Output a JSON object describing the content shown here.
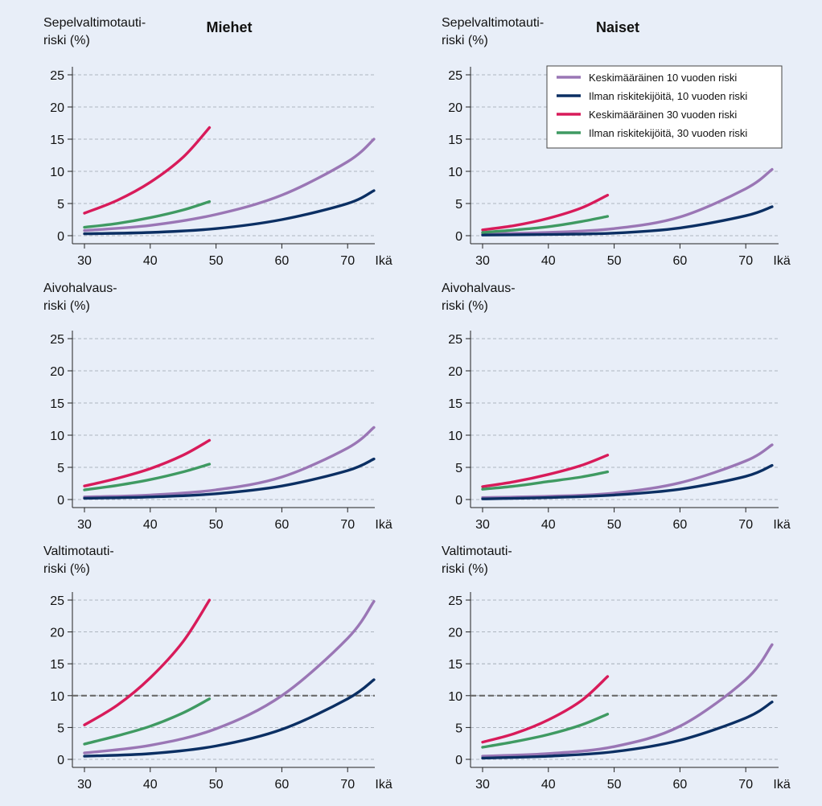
{
  "group_titles": [
    "Miehet",
    "Naiset"
  ],
  "series_legend": [
    {
      "name": "Keskimääräinen 10 vuoden riski",
      "color": "#9a76b5"
    },
    {
      "name": "Ilman riskitekijöitä, 10 vuoden riski",
      "color": "#0b2f63"
    },
    {
      "name": "Keskimääräinen 30 vuoden riski",
      "color": "#d81b5a"
    },
    {
      "name": "Ilman riskitekijöitä, 30 vuoden riski",
      "color": "#3f9a62"
    }
  ],
  "chart_data": [
    {
      "type": "line",
      "group": "Miehet",
      "ylabel": [
        "Sepelvaltimotauti-",
        "riski (%)"
      ],
      "xlabel": "Ikä",
      "xticks": [
        30,
        40,
        50,
        60,
        70
      ],
      "yticks": [
        0,
        5,
        10,
        15,
        20,
        25
      ],
      "ylim": [
        0,
        25
      ],
      "xlim": [
        30,
        75
      ],
      "threshold": null,
      "series": [
        {
          "name": "Keskimääräinen 10 vuoden riski",
          "x": [
            30,
            40,
            50,
            60,
            70,
            74
          ],
          "y": [
            0.8,
            1.6,
            3.3,
            6.3,
            11.5,
            15.0
          ]
        },
        {
          "name": "Ilman riskitekijöitä, 10 vuoden riski",
          "x": [
            30,
            40,
            50,
            60,
            70,
            74
          ],
          "y": [
            0.3,
            0.5,
            1.1,
            2.5,
            5.0,
            7.0
          ]
        },
        {
          "name": "Keskimääräinen 30 vuoden riski",
          "x": [
            30,
            35,
            40,
            45,
            49
          ],
          "y": [
            3.5,
            5.5,
            8.3,
            12.2,
            16.8
          ]
        },
        {
          "name": "Ilman riskitekijöitä, 30 vuoden riski",
          "x": [
            30,
            35,
            40,
            45,
            49
          ],
          "y": [
            1.3,
            1.9,
            2.8,
            4.0,
            5.3
          ]
        }
      ]
    },
    {
      "type": "line",
      "group": "Naiset",
      "ylabel": [
        "Sepelvaltimotauti-",
        "riski (%)"
      ],
      "xlabel": "Ikä",
      "xticks": [
        30,
        40,
        50,
        60,
        70
      ],
      "yticks": [
        0,
        5,
        10,
        15,
        20,
        25
      ],
      "ylim": [
        0,
        25
      ],
      "xlim": [
        30,
        75
      ],
      "threshold": null,
      "legend": "top-right",
      "series": [
        {
          "name": "Keskimääräinen 10 vuoden riski",
          "x": [
            30,
            40,
            50,
            60,
            70,
            74
          ],
          "y": [
            0.3,
            0.5,
            1.1,
            2.9,
            7.3,
            10.3
          ]
        },
        {
          "name": "Ilman riskitekijöitä, 10 vuoden riski",
          "x": [
            30,
            40,
            50,
            60,
            70,
            74
          ],
          "y": [
            0.1,
            0.2,
            0.4,
            1.2,
            3.1,
            4.5
          ]
        },
        {
          "name": "Keskimääräinen 30 vuoden riski",
          "x": [
            30,
            35,
            40,
            45,
            49
          ],
          "y": [
            0.9,
            1.6,
            2.7,
            4.3,
            6.3
          ]
        },
        {
          "name": "Ilman riskitekijöitä, 30 vuoden riski",
          "x": [
            30,
            35,
            40,
            45,
            49
          ],
          "y": [
            0.5,
            0.9,
            1.4,
            2.2,
            3.0
          ]
        }
      ]
    },
    {
      "type": "line",
      "group": "Miehet",
      "ylabel": [
        "Aivohalvaus-",
        "riski (%)"
      ],
      "xlabel": "Ikä",
      "xticks": [
        30,
        40,
        50,
        60,
        70
      ],
      "yticks": [
        0,
        5,
        10,
        15,
        20,
        25
      ],
      "ylim": [
        0,
        25
      ],
      "xlim": [
        30,
        75
      ],
      "threshold": null,
      "series": [
        {
          "name": "Keskimääräinen 10 vuoden riski",
          "x": [
            30,
            40,
            50,
            60,
            70,
            74
          ],
          "y": [
            0.4,
            0.7,
            1.5,
            3.5,
            8.0,
            11.2
          ]
        },
        {
          "name": "Ilman riskitekijöitä, 10 vuoden riski",
          "x": [
            30,
            40,
            50,
            60,
            70,
            74
          ],
          "y": [
            0.2,
            0.4,
            0.9,
            2.1,
            4.5,
            6.3
          ]
        },
        {
          "name": "Keskimääräinen 30 vuoden riski",
          "x": [
            30,
            35,
            40,
            45,
            49
          ],
          "y": [
            2.1,
            3.3,
            4.8,
            6.9,
            9.2
          ]
        },
        {
          "name": "Ilman riskitekijöitä, 30 vuoden riski",
          "x": [
            30,
            35,
            40,
            45,
            49
          ],
          "y": [
            1.5,
            2.2,
            3.1,
            4.3,
            5.5
          ]
        }
      ]
    },
    {
      "type": "line",
      "group": "Naiset",
      "ylabel": [
        "Aivohalvaus-",
        "riski (%)"
      ],
      "xlabel": "Ikä",
      "xticks": [
        30,
        40,
        50,
        60,
        70
      ],
      "yticks": [
        0,
        5,
        10,
        15,
        20,
        25
      ],
      "ylim": [
        0,
        25
      ],
      "xlim": [
        30,
        75
      ],
      "threshold": null,
      "series": [
        {
          "name": "Keskimääräinen 10 vuoden riski",
          "x": [
            30,
            40,
            50,
            60,
            70,
            74
          ],
          "y": [
            0.3,
            0.5,
            1.0,
            2.6,
            6.0,
            8.5
          ]
        },
        {
          "name": "Ilman riskitekijöitä, 10 vuoden riski",
          "x": [
            30,
            40,
            50,
            60,
            70,
            74
          ],
          "y": [
            0.1,
            0.3,
            0.7,
            1.6,
            3.6,
            5.3
          ]
        },
        {
          "name": "Keskimääräinen 30 vuoden riski",
          "x": [
            30,
            35,
            40,
            45,
            49
          ],
          "y": [
            2.0,
            2.8,
            3.9,
            5.3,
            6.9
          ]
        },
        {
          "name": "Ilman riskitekijöitä, 30 vuoden riski",
          "x": [
            30,
            35,
            40,
            45,
            49
          ],
          "y": [
            1.6,
            2.1,
            2.8,
            3.5,
            4.3
          ]
        }
      ]
    },
    {
      "type": "line",
      "group": "Miehet",
      "ylabel": [
        "Valtimotauti-",
        "riski (%)"
      ],
      "xlabel": "Ikä",
      "xticks": [
        30,
        40,
        50,
        60,
        70
      ],
      "yticks": [
        0,
        5,
        10,
        15,
        20,
        25
      ],
      "ylim": [
        0,
        25
      ],
      "xlim": [
        30,
        75
      ],
      "threshold": 10,
      "series": [
        {
          "name": "Keskimääräinen 10 vuoden riski",
          "x": [
            30,
            40,
            50,
            60,
            70,
            74
          ],
          "y": [
            1.0,
            2.2,
            4.8,
            10.0,
            19.0,
            24.8
          ]
        },
        {
          "name": "Ilman riskitekijöitä, 10 vuoden riski",
          "x": [
            30,
            40,
            50,
            60,
            70,
            74
          ],
          "y": [
            0.5,
            0.9,
            2.1,
            4.7,
            9.5,
            12.5
          ]
        },
        {
          "name": "Keskimääräinen 30 vuoden riski",
          "x": [
            30,
            35,
            40,
            45,
            49
          ],
          "y": [
            5.4,
            8.5,
            12.8,
            18.5,
            25.0
          ]
        },
        {
          "name": "Ilman riskitekijöitä, 30 vuoden riski",
          "x": [
            30,
            35,
            40,
            45,
            49
          ],
          "y": [
            2.4,
            3.7,
            5.2,
            7.3,
            9.5
          ]
        }
      ]
    },
    {
      "type": "line",
      "group": "Naiset",
      "ylabel": [
        "Valtimotauti-",
        "riski (%)"
      ],
      "xlabel": "Ikä",
      "xticks": [
        30,
        40,
        50,
        60,
        70
      ],
      "yticks": [
        0,
        5,
        10,
        15,
        20,
        25
      ],
      "ylim": [
        0,
        25
      ],
      "xlim": [
        30,
        75
      ],
      "threshold": 10,
      "series": [
        {
          "name": "Keskimääräinen 10 vuoden riski",
          "x": [
            30,
            40,
            50,
            60,
            70,
            74
          ],
          "y": [
            0.5,
            0.9,
            2.0,
            5.2,
            12.5,
            18.0
          ]
        },
        {
          "name": "Ilman riskitekijöitä, 10 vuoden riski",
          "x": [
            30,
            40,
            50,
            60,
            70,
            74
          ],
          "y": [
            0.2,
            0.5,
            1.2,
            3.0,
            6.5,
            9.0
          ]
        },
        {
          "name": "Keskimääräinen 30 vuoden riski",
          "x": [
            30,
            35,
            40,
            45,
            49
          ],
          "y": [
            2.7,
            4.1,
            6.2,
            9.2,
            13.0
          ]
        },
        {
          "name": "Ilman riskitekijöitä, 30 vuoden riski",
          "x": [
            30,
            35,
            40,
            45,
            49
          ],
          "y": [
            1.9,
            2.8,
            3.9,
            5.4,
            7.1
          ]
        }
      ]
    }
  ]
}
